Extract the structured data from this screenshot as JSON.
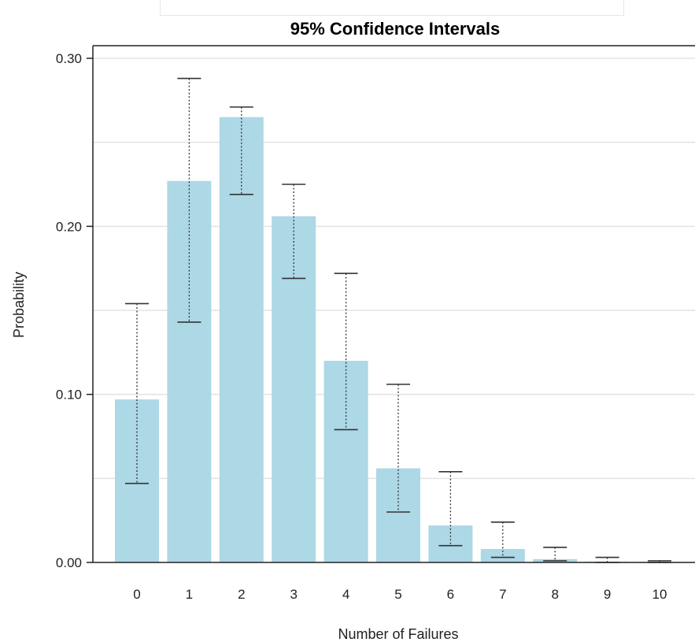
{
  "chart_data": {
    "type": "bar",
    "title": "95% Confidence Intervals",
    "xlabel": "Number of Failures",
    "ylabel": "Probability",
    "categories": [
      "0",
      "1",
      "2",
      "3",
      "4",
      "5",
      "6",
      "7",
      "8",
      "9",
      "10"
    ],
    "values": [
      0.097,
      0.227,
      0.265,
      0.206,
      0.12,
      0.056,
      0.022,
      0.008,
      0.002,
      0.0005,
      0.0001
    ],
    "ci_lower": [
      0.047,
      0.143,
      0.219,
      0.169,
      0.079,
      0.03,
      0.01,
      0.003,
      0.001,
      0.0,
      0.0
    ],
    "ci_upper": [
      0.154,
      0.288,
      0.271,
      0.225,
      0.172,
      0.106,
      0.054,
      0.024,
      0.009,
      0.003,
      0.001
    ],
    "ylim": [
      0,
      0.3
    ],
    "yticks": [
      "0.00",
      "0.10",
      "0.20",
      "0.30"
    ],
    "grid": true,
    "legend": "none",
    "colors": {
      "bar": "#add8e6",
      "error_bar": "#333333",
      "grid": "#e3e3e3",
      "axis": "#222222"
    }
  }
}
